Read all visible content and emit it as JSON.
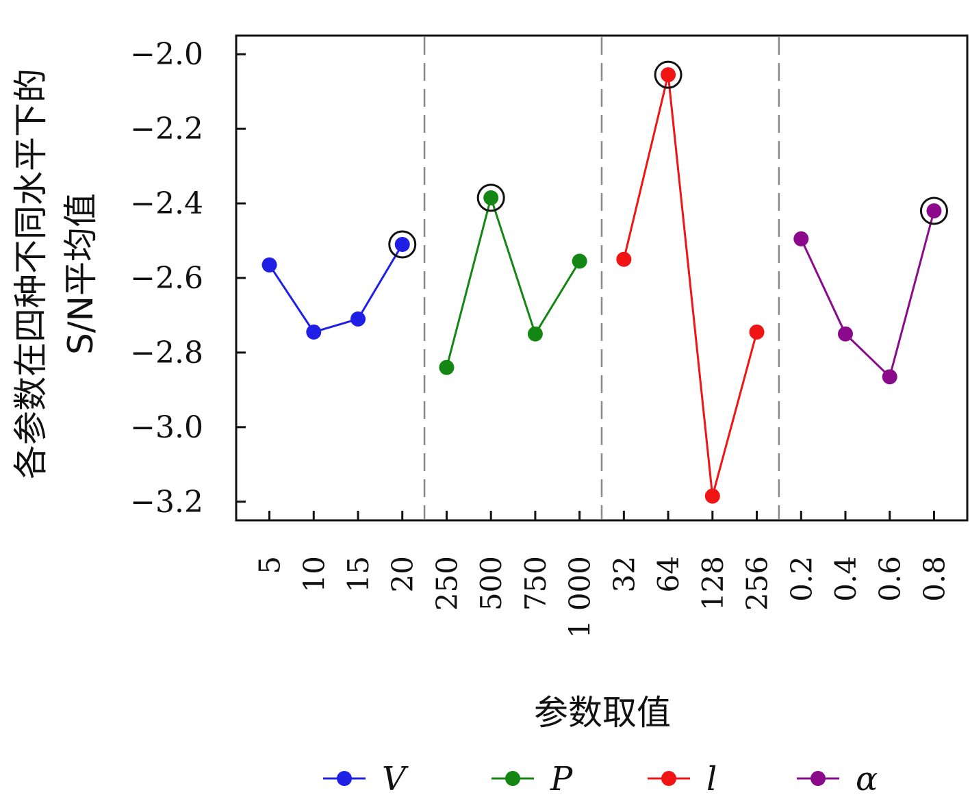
{
  "chart_data": {
    "type": "line",
    "xlabel": "参数取值",
    "ylabel": "各参数在四种不同水平下的S/N平均值",
    "ylabel_lines": [
      "各参数在四种不同水平下的",
      "S/N平均值"
    ],
    "ylim": [
      -3.25,
      -1.95
    ],
    "yticks": [
      -2.0,
      -2.2,
      -2.4,
      -2.6,
      -2.8,
      -3.0,
      -3.2
    ],
    "ytick_labels": [
      "−2.0",
      "−2.2",
      "−2.4",
      "−2.6",
      "−2.8",
      "−3.0",
      "−3.2"
    ],
    "grid": false,
    "legend_position": "bottom",
    "group_separators": "dashed",
    "series": [
      {
        "name": "V",
        "color": "#1f1fe6",
        "categories": [
          "5",
          "10",
          "15",
          "20"
        ],
        "values": [
          -2.565,
          -2.745,
          -2.71,
          -2.51
        ],
        "best_index": 3
      },
      {
        "name": "P",
        "color": "#138613",
        "categories": [
          "250",
          "500",
          "750",
          "1 000"
        ],
        "values": [
          -2.84,
          -2.385,
          -2.75,
          -2.555
        ],
        "best_index": 1
      },
      {
        "name": "l",
        "color": "#f01414",
        "categories": [
          "32",
          "64",
          "128",
          "256"
        ],
        "values": [
          -2.55,
          -2.055,
          -3.185,
          -2.745
        ],
        "best_index": 1
      },
      {
        "name": "α",
        "color": "#8b0a8b",
        "categories": [
          "0.2",
          "0.4",
          "0.6",
          "0.8"
        ],
        "values": [
          -2.495,
          -2.75,
          -2.865,
          -2.42
        ],
        "best_index": 3
      }
    ]
  }
}
